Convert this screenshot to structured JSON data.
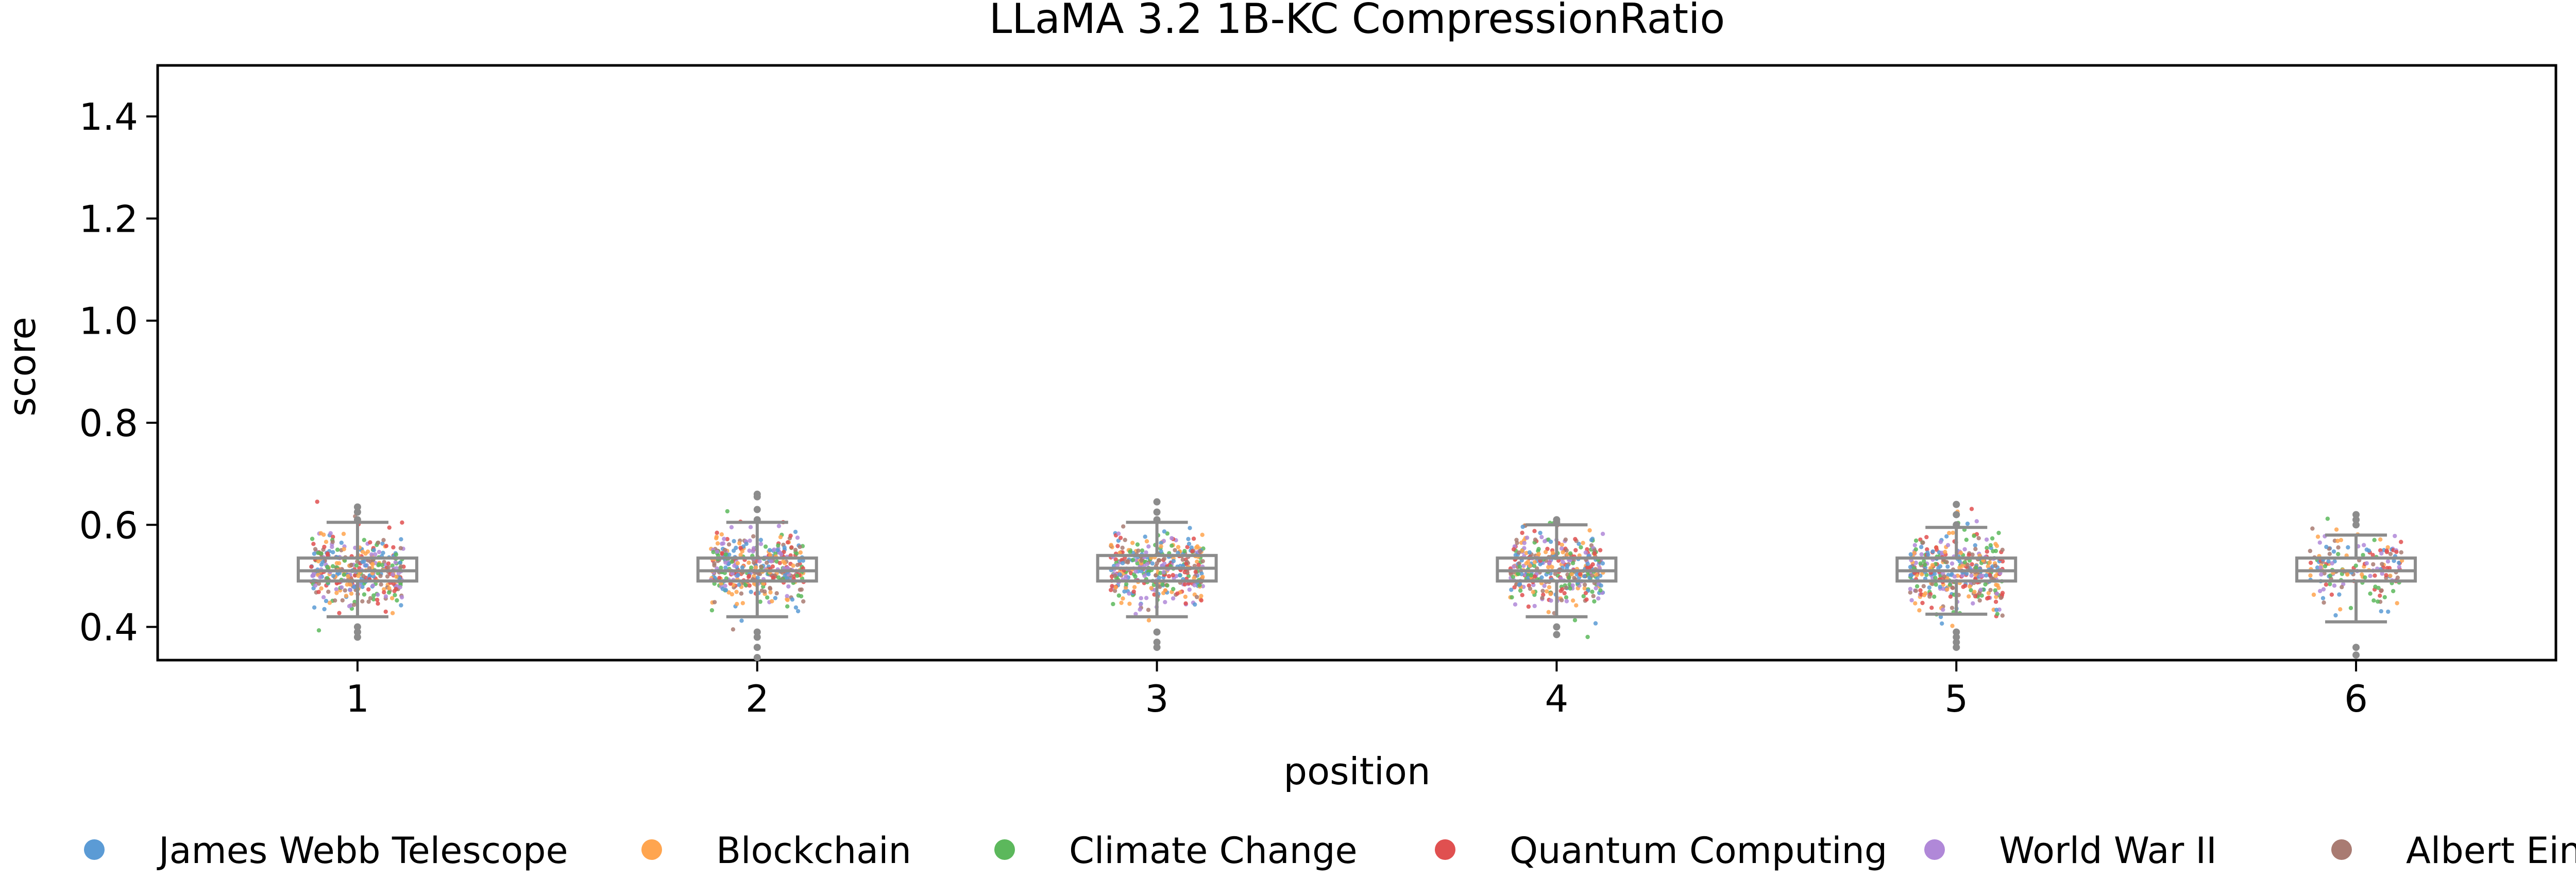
{
  "chart_data": {
    "type": "box+strip",
    "title": "LLaMA 3.2 1B-KC CompressionRatio",
    "xlabel": "position",
    "ylabel": "score",
    "xlim": [
      0.5,
      6.5
    ],
    "ylim": [
      0.335,
      1.5
    ],
    "grid": false,
    "legend_position": "bottom",
    "categories": [
      "1",
      "2",
      "3",
      "4",
      "5",
      "6"
    ],
    "yticks": [
      "0.4",
      "0.6",
      "0.8",
      "1.0",
      "1.2",
      "1.4"
    ],
    "box_stats": [
      {
        "position": "1",
        "q1": 0.49,
        "median": 0.51,
        "q3": 0.535,
        "whisker_low": 0.42,
        "whisker_high": 0.605,
        "fliers": [
          0.38,
          0.39,
          0.4,
          0.61,
          0.625,
          0.635
        ]
      },
      {
        "position": "2",
        "q1": 0.49,
        "median": 0.51,
        "q3": 0.535,
        "whisker_low": 0.42,
        "whisker_high": 0.605,
        "fliers": [
          0.34,
          0.36,
          0.38,
          0.39,
          0.61,
          0.63,
          0.655,
          0.66
        ]
      },
      {
        "position": "3",
        "q1": 0.49,
        "median": 0.515,
        "q3": 0.54,
        "whisker_low": 0.42,
        "whisker_high": 0.605,
        "fliers": [
          0.36,
          0.37,
          0.39,
          0.61,
          0.625,
          0.645
        ]
      },
      {
        "position": "4",
        "q1": 0.49,
        "median": 0.51,
        "q3": 0.535,
        "whisker_low": 0.42,
        "whisker_high": 0.6,
        "fliers": [
          0.385,
          0.4,
          0.605,
          0.61
        ]
      },
      {
        "position": "5",
        "q1": 0.49,
        "median": 0.51,
        "q3": 0.535,
        "whisker_low": 0.425,
        "whisker_high": 0.595,
        "fliers": [
          0.36,
          0.37,
          0.38,
          0.39,
          0.6,
          0.62,
          0.64
        ]
      },
      {
        "position": "6",
        "q1": 0.49,
        "median": 0.51,
        "q3": 0.535,
        "whisker_low": 0.41,
        "whisker_high": 0.58,
        "fliers": [
          0.345,
          0.36,
          0.6,
          0.61,
          0.62
        ]
      }
    ],
    "series": [
      {
        "name": "James Webb Telescope",
        "color": "#5b9bd5"
      },
      {
        "name": "Blockchain",
        "color": "#ffa54f"
      },
      {
        "name": "Climate Change",
        "color": "#5cb85c"
      },
      {
        "name": "Quantum Computing",
        "color": "#e05050"
      },
      {
        "name": "World War II",
        "color": "#b088d8"
      },
      {
        "name": "Albert Einstein",
        "color": "#a97b72"
      }
    ],
    "strip_points_per_position": [
      380,
      380,
      380,
      380,
      380,
      160
    ],
    "strip_center": 0.512,
    "strip_spread": 0.035
  }
}
